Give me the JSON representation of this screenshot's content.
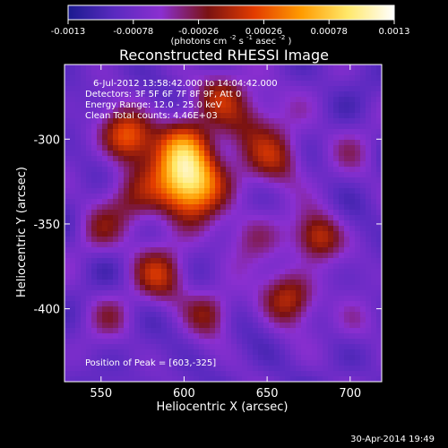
{
  "chart_data": {
    "type": "heatmap",
    "title": "Reconstructed RHESSI Image",
    "xlabel": "Heliocentric X (arcsec)",
    "ylabel": "Heliocentric Y (arcsec)",
    "xlim": [
      528,
      719
    ],
    "ylim": [
      -443,
      -256
    ],
    "x_ticks": [
      550,
      600,
      650,
      700
    ],
    "y_ticks": [
      -300,
      -350,
      -400
    ],
    "colorbar": {
      "range": [
        -0.0013,
        0.0013
      ],
      "ticks": [
        "-0.0013",
        "-0.00078",
        "-0.00026",
        "0.00026",
        "0.00078",
        "0.0013"
      ],
      "unit_label": "(photons cm^-2 s^-1 asec^-2)",
      "unit_parts": {
        "a": "(photons cm",
        "b": "-2",
        "c": " s",
        "d": "-1",
        "e": " asec",
        "f": "-2",
        "g": ")"
      },
      "colors": [
        "#1a1a8f",
        "#5a2ac0",
        "#8b2fd0",
        "#7a1212",
        "#e33c00",
        "#ff9b00",
        "#ffe86a",
        "#ffffff"
      ]
    },
    "info_lines": [
      "6-Jul-2012 13:58:42.000 to 14:04:42.000",
      "Detectors: 3F 5F 6F 7F 8F 9F, Att 0",
      "Energy Range: 12.0 - 25.0 keV",
      "Clean      Total counts: 4.46E+03"
    ],
    "peak_label": "Position of Peak = [603,-325]",
    "peak": [
      603,
      -325
    ],
    "timestamp": "30-Apr-2014 19:49",
    "hotspots": [
      {
        "x": 603,
        "y": -325,
        "strength": 1.0,
        "radius": 14
      },
      {
        "x": 566,
        "y": -298,
        "strength": 0.62,
        "radius": 11
      },
      {
        "x": 600,
        "y": -304,
        "strength": 0.48,
        "radius": 12
      },
      {
        "x": 657,
        "y": -312,
        "strength": 0.38,
        "radius": 12
      },
      {
        "x": 638,
        "y": -287,
        "strength": 0.34,
        "radius": 14
      },
      {
        "x": 681,
        "y": -358,
        "strength": 0.5,
        "radius": 10
      },
      {
        "x": 663,
        "y": -393,
        "strength": 0.48,
        "radius": 11
      },
      {
        "x": 586,
        "y": -380,
        "strength": 0.4,
        "radius": 12
      },
      {
        "x": 615,
        "y": -402,
        "strength": 0.32,
        "radius": 10
      },
      {
        "x": 570,
        "y": -337,
        "strength": 0.3,
        "radius": 13
      },
      {
        "x": 548,
        "y": -356,
        "strength": 0.2,
        "radius": 10
      },
      {
        "x": 702,
        "y": -305,
        "strength": 0.12,
        "radius": 12
      },
      {
        "x": 622,
        "y": -273,
        "strength": 0.28,
        "radius": 10
      },
      {
        "x": 640,
        "y": -357,
        "strength": 0.26,
        "radius": 12
      },
      {
        "x": 555,
        "y": -405,
        "strength": 0.2,
        "radius": 10
      },
      {
        "x": 703,
        "y": -408,
        "strength": 0.18,
        "radius": 10
      }
    ]
  }
}
